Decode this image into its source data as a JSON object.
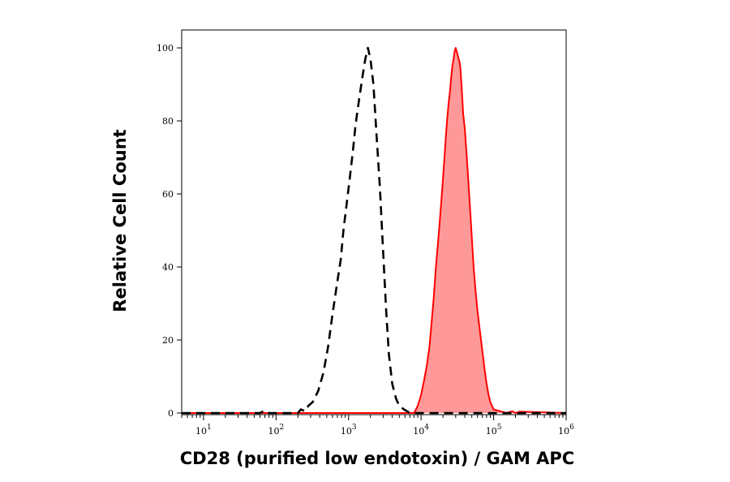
{
  "chart_data": {
    "type": "area",
    "title": "",
    "xlabel": "CD28 (purified low endotoxin) / GAM APC",
    "ylabel": "Relative Cell Count",
    "x_scale": "log",
    "xlim": [
      5,
      1000000
    ],
    "ylim": [
      0,
      105
    ],
    "x_ticks": [
      {
        "value": 10,
        "base": "10",
        "exp": "1"
      },
      {
        "value": 100,
        "base": "10",
        "exp": "2"
      },
      {
        "value": 1000,
        "base": "10",
        "exp": "3"
      },
      {
        "value": 10000,
        "base": "10",
        "exp": "4"
      },
      {
        "value": 100000,
        "base": "10",
        "exp": "5"
      },
      {
        "value": 1000000,
        "base": "10",
        "exp": "6"
      }
    ],
    "y_ticks": [
      0,
      20,
      40,
      60,
      80,
      100
    ],
    "grid": false,
    "series": [
      {
        "style": "dashed",
        "color": "#000000",
        "fill": "none",
        "x": [
          5,
          60,
          70,
          80,
          200,
          220,
          250,
          280,
          320,
          380,
          450,
          520,
          600,
          700,
          780,
          850,
          950,
          1050,
          1150,
          1250,
          1400,
          1550,
          1700,
          1850,
          2000,
          2200,
          2400,
          2700,
          3000,
          3300,
          3600,
          4000,
          4500,
          5000,
          5800,
          7000,
          10000,
          1000000
        ],
        "y": [
          0,
          0,
          0.7,
          0,
          0,
          1,
          0.5,
          2,
          3,
          6,
          11,
          18,
          27,
          36,
          42,
          50,
          58,
          65,
          72,
          79,
          86,
          92,
          97,
          100,
          97,
          90,
          78,
          62,
          44,
          28,
          16,
          8,
          4,
          2,
          1,
          0,
          0,
          0
        ]
      },
      {
        "style": "solid",
        "color": "#ff0000",
        "fill": "#ff9999",
        "x": [
          5,
          8000,
          9000,
          10000,
          11000,
          12000,
          13000,
          14000,
          15000,
          16000,
          17000,
          18000,
          19000,
          20000,
          21000,
          22000,
          23000,
          24000,
          25000,
          26000,
          27000,
          28000,
          29000,
          30000,
          31000,
          32000,
          33000,
          34000,
          35000,
          36000,
          37000,
          38000,
          40000,
          42000,
          44000,
          46000,
          48000,
          50000,
          53000,
          56000,
          60000,
          65000,
          70000,
          75000,
          80000,
          85000,
          90000,
          100000,
          150000,
          180000,
          200000,
          230000,
          1000000
        ],
        "y": [
          0,
          0,
          2,
          5,
          9,
          13,
          18,
          25,
          32,
          40,
          46,
          52,
          58,
          64,
          70,
          76,
          81,
          85,
          88,
          92,
          95,
          97,
          99,
          100,
          99,
          98,
          97,
          96,
          94,
          90,
          86,
          82,
          78,
          72,
          66,
          60,
          54,
          48,
          40,
          34,
          28,
          22,
          17,
          12,
          8,
          5,
          3,
          1,
          0,
          0.5,
          0,
          0.4,
          0
        ]
      }
    ]
  }
}
